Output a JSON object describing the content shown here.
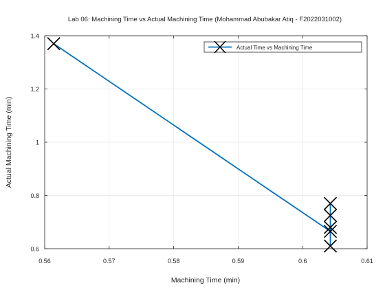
{
  "chart_data": {
    "type": "line",
    "title": "Lab 06: Machining Time vs Actual Machining Time (Mohammad Abubakar Atiq - F2022031002)",
    "xlabel": "Machining Time (min)",
    "ylabel": "Actual Machining Time (min)",
    "xlim": [
      0.56,
      0.61
    ],
    "ylim": [
      0.6,
      1.4
    ],
    "xticks": [
      0.56,
      0.57,
      0.58,
      0.59,
      0.6,
      0.61
    ],
    "xtick_labels": [
      "0.56",
      "0.57",
      "0.58",
      "0.59",
      "0.6",
      "0.61"
    ],
    "yticks": [
      0.6,
      0.8,
      1.0,
      1.2,
      1.4
    ],
    "ytick_labels": [
      "0.6",
      "0.8",
      "1",
      "1.2",
      "1.4"
    ],
    "grid": true,
    "legend_position": "top-right",
    "series": [
      {
        "name": "Actual Time vs Machining Time",
        "color": "#0072BD",
        "marker": "x",
        "marker_color": "#000000",
        "x": [
          0.5614,
          0.6043,
          0.6043,
          0.6043,
          0.6043,
          0.6043
        ],
        "y": [
          1.37,
          0.665,
          0.61,
          0.68,
          0.725,
          0.77
        ]
      }
    ]
  }
}
